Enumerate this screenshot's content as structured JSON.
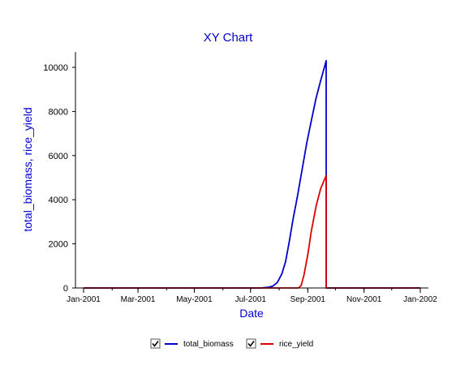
{
  "chart_data": {
    "type": "line",
    "title": "XY Chart",
    "xlabel": "Date",
    "ylabel": "total_biomass, rice_yield",
    "xlim": [
      "2001-01-01",
      "2002-01-01"
    ],
    "ylim": [
      0,
      10700
    ],
    "x_ticks": [
      {
        "date": "2001-01-01",
        "label": "Jan-2001"
      },
      {
        "date": "2001-03-01",
        "label": "Mar-2001"
      },
      {
        "date": "2001-05-01",
        "label": "May-2001"
      },
      {
        "date": "2001-07-01",
        "label": "Jul-2001"
      },
      {
        "date": "2001-09-01",
        "label": "Sep-2001"
      },
      {
        "date": "2001-11-01",
        "label": "Nov-2001"
      },
      {
        "date": "2002-01-01",
        "label": "Jan-2002"
      }
    ],
    "y_ticks": [
      0,
      2000,
      4000,
      6000,
      8000,
      10000
    ],
    "grid": false,
    "legend_position": "bottom",
    "series": [
      {
        "name": "total_biomass",
        "color": "#0000cc",
        "checked": true,
        "points": [
          [
            "2001-01-01",
            0
          ],
          [
            "2001-07-12",
            0
          ],
          [
            "2001-07-20",
            30
          ],
          [
            "2001-07-25",
            80
          ],
          [
            "2001-07-30",
            250
          ],
          [
            "2001-08-04",
            650
          ],
          [
            "2001-08-08",
            1200
          ],
          [
            "2001-08-12",
            2100
          ],
          [
            "2001-08-16",
            3100
          ],
          [
            "2001-08-21",
            4200
          ],
          [
            "2001-08-26",
            5400
          ],
          [
            "2001-08-31",
            6600
          ],
          [
            "2001-09-05",
            7600
          ],
          [
            "2001-09-10",
            8600
          ],
          [
            "2001-09-15",
            9400
          ],
          [
            "2001-09-19",
            10000
          ],
          [
            "2001-09-21",
            10300
          ],
          [
            "2001-09-21",
            0
          ],
          [
            "2002-01-01",
            0
          ]
        ]
      },
      {
        "name": "rice_yield",
        "color": "#dd0000",
        "checked": true,
        "points": [
          [
            "2001-01-01",
            0
          ],
          [
            "2001-08-22",
            0
          ],
          [
            "2001-08-25",
            120
          ],
          [
            "2001-08-28",
            600
          ],
          [
            "2001-09-01",
            1500
          ],
          [
            "2001-09-05",
            2600
          ],
          [
            "2001-09-10",
            3700
          ],
          [
            "2001-09-15",
            4500
          ],
          [
            "2001-09-21",
            5100
          ],
          [
            "2001-09-21",
            0
          ],
          [
            "2002-01-01",
            0
          ]
        ]
      }
    ]
  },
  "legend": {
    "items": [
      {
        "label": "total_biomass",
        "color": "#0000cc",
        "checked": true
      },
      {
        "label": "rice_yield",
        "color": "#dd0000",
        "checked": true
      }
    ]
  }
}
